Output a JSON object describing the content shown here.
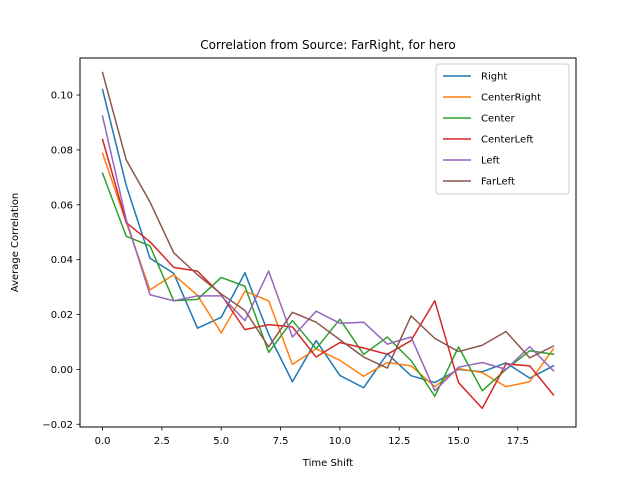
{
  "chart_data": {
    "type": "line",
    "title": "Correlation from Source: FarRight, for hero",
    "xlabel": "Time Shift",
    "ylabel": "Average Correlation",
    "xlim": [
      -0.95,
      19.95
    ],
    "ylim": [
      -0.021,
      0.1135
    ],
    "xticks": [
      0.0,
      2.5,
      5.0,
      7.5,
      10.0,
      12.5,
      15.0,
      17.5
    ],
    "xtick_labels": [
      "0.0",
      "2.5",
      "5.0",
      "7.5",
      "10.0",
      "12.5",
      "15.0",
      "17.5"
    ],
    "yticks": [
      -0.02,
      0.0,
      0.02,
      0.04,
      0.06,
      0.08,
      0.1
    ],
    "ytick_labels": [
      "−0.02",
      "0.00",
      "0.02",
      "0.04",
      "0.06",
      "0.08",
      "0.10"
    ],
    "grid": false,
    "legend_position": "top-right",
    "x": [
      0,
      1,
      2,
      3,
      4,
      5,
      6,
      7,
      8,
      9,
      10,
      11,
      12,
      13,
      14,
      15,
      16,
      17,
      18,
      19
    ],
    "series": [
      {
        "name": "Right",
        "color": "#1f77b4",
        "values": [
          0.102,
          0.067,
          0.0405,
          0.035,
          0.015,
          0.019,
          0.0352,
          0.0128,
          -0.0045,
          0.0105,
          -0.0022,
          -0.0067,
          0.0057,
          -0.0023,
          -0.0048,
          0.0,
          -0.0009,
          0.0024,
          -0.0032,
          0.0013
        ]
      },
      {
        "name": "CenterRight",
        "color": "#ff7f0e",
        "values": [
          0.0788,
          0.0535,
          0.029,
          0.0345,
          0.027,
          0.0133,
          0.0285,
          0.025,
          0.0018,
          0.0075,
          0.0033,
          -0.0025,
          0.0025,
          0.0013,
          -0.0063,
          0.0003,
          -0.0012,
          -0.0063,
          -0.0045,
          0.0075
        ]
      },
      {
        "name": "Center",
        "color": "#2ca02c",
        "values": [
          0.0715,
          0.0485,
          0.045,
          0.025,
          0.0255,
          0.0335,
          0.0303,
          0.0062,
          0.0178,
          0.0075,
          0.0183,
          0.0055,
          0.0118,
          0.0032,
          -0.0098,
          0.0082,
          -0.0078,
          0.0,
          0.0068,
          0.0055
        ]
      },
      {
        "name": "CenterLeft",
        "color": "#d62728",
        "values": [
          0.0838,
          0.0535,
          0.0465,
          0.0372,
          0.0358,
          0.0272,
          0.0145,
          0.0163,
          0.0155,
          0.0045,
          0.0098,
          0.0078,
          0.0055,
          0.0105,
          0.025,
          -0.0048,
          -0.0142,
          0.002,
          0.0013,
          -0.0093
        ]
      },
      {
        "name": "Left",
        "color": "#9467bd",
        "values": [
          0.0923,
          0.0545,
          0.0272,
          0.025,
          0.0268,
          0.0268,
          0.0178,
          0.0358,
          0.0118,
          0.0212,
          0.0168,
          0.0172,
          0.0092,
          0.0118,
          -0.0078,
          0.0008,
          0.0025,
          0.0,
          0.0083,
          -0.0005
        ]
      },
      {
        "name": "FarLeft",
        "color": "#8c564b",
        "values": [
          0.1082,
          0.0763,
          0.061,
          0.0425,
          0.0345,
          0.0275,
          0.0215,
          0.0082,
          0.0208,
          0.0172,
          0.0108,
          0.0045,
          0.0005,
          0.0195,
          0.0113,
          0.0065,
          0.0088,
          0.0138,
          0.0042,
          0.0085
        ]
      }
    ]
  }
}
